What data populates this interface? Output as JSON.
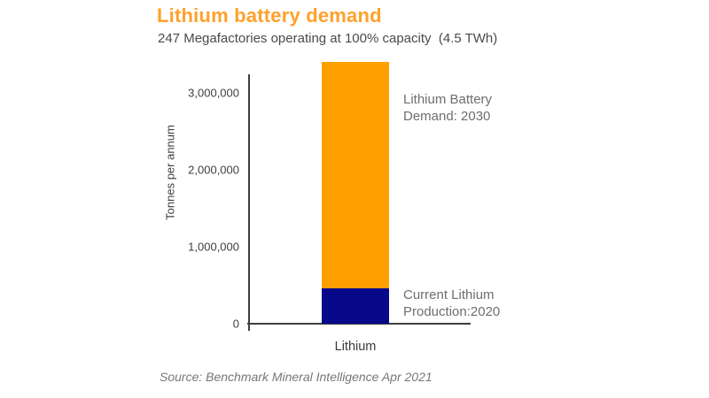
{
  "header": {
    "title": "Lithium battery demand",
    "subtitle": "247 Megafactories operating at 100% capacity  (4.5 TWh)"
  },
  "chart_data": {
    "type": "bar",
    "stacked": true,
    "title": "Lithium battery demand",
    "subtitle": "247 Megafactories operating at 100% capacity (4.5 TWh)",
    "categories": [
      "Lithium"
    ],
    "series": [
      {
        "segment_id": "production-2020",
        "name": "Current Lithium Production: 2020",
        "values": [
          460000
        ],
        "color": "#08088A"
      },
      {
        "segment_id": "demand-2030",
        "name": "Lithium Battery Demand: 2030 (additional above current production)",
        "values": [
          2940000
        ],
        "color": "#FFA000"
      }
    ],
    "totals": {
      "lithium_battery_demand_2030": 3400000,
      "current_lithium_production_2020": 460000
    },
    "xlabel": "",
    "ylabel": "Tonnes per annum",
    "y_ticks": [
      0,
      1000000,
      2000000,
      3000000
    ],
    "ylim": [
      0,
      3400000
    ],
    "grid": false,
    "legend_position": "inline-annotations"
  },
  "annotations": {
    "demand_label": "Lithium Battery\nDemand: 2030",
    "production_label": "Current Lithium\nProduction:2020"
  },
  "axis": {
    "ylabel": "Tonnes per annum",
    "category": "Lithium"
  },
  "source": "Source: Benchmark Mineral Intelligence Apr 2021",
  "colors": {
    "title_orange": "#FFA12B",
    "demand_orange": "#FFA000",
    "production_navy": "#08088A",
    "axis_gray": "#3F3F3F",
    "annotation_gray": "#6E6E6E"
  }
}
